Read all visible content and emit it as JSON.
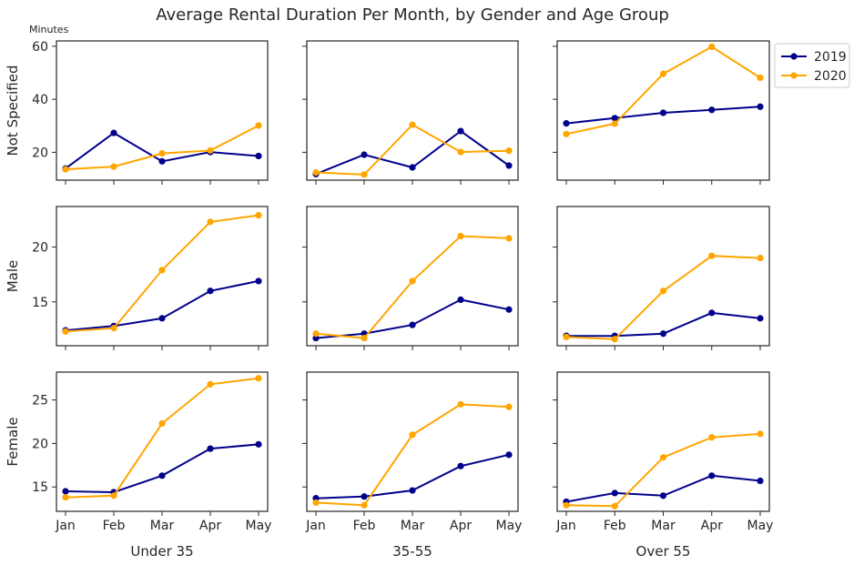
{
  "title": "Average Rental Duration Per Month, by Gender and Age Group",
  "unit_label": "Minutes",
  "colors": {
    "2019": "#00008b",
    "2020": "#ffa500",
    "axis": "#262626"
  },
  "legend": {
    "placement": "right of top-right panel",
    "entries": [
      "2019",
      "2020"
    ]
  },
  "row_labels": [
    "Not Specified",
    "Male",
    "Female"
  ],
  "col_labels": [
    "Under 35",
    "35-55",
    "Over 55"
  ],
  "chart_data": {
    "type": "line",
    "title": "Average Rental Duration Per Month, by Gender and Age Group",
    "x": [
      "Jan",
      "Feb",
      "Mar",
      "Apr",
      "May"
    ],
    "grid": false,
    "rows": [
      {
        "label": "Not Specified",
        "ylim": [
          9.5,
          62
        ],
        "yticks": [
          20,
          40,
          60
        ]
      },
      {
        "label": "Male",
        "ylim": [
          11,
          23.7
        ],
        "yticks": [
          15,
          20
        ]
      },
      {
        "label": "Female",
        "ylim": [
          12.2,
          28.2
        ],
        "yticks": [
          15,
          20,
          25
        ]
      }
    ],
    "panels": [
      {
        "row": "Not Specified",
        "col": "Under 35",
        "series": [
          {
            "name": "2019",
            "values": [
              13.9,
              27.3,
              16.6,
              20.1,
              18.6
            ]
          },
          {
            "name": "2020",
            "values": [
              13.6,
              14.6,
              19.6,
              20.7,
              30.1
            ]
          }
        ]
      },
      {
        "row": "Not Specified",
        "col": "35-55",
        "series": [
          {
            "name": "2019",
            "values": [
              11.8,
              19.1,
              14.3,
              28.0,
              15.0
            ]
          },
          {
            "name": "2020",
            "values": [
              12.4,
              11.6,
              30.4,
              20.1,
              20.6
            ]
          }
        ]
      },
      {
        "row": "Not Specified",
        "col": "Over 55",
        "series": [
          {
            "name": "2019",
            "values": [
              30.9,
              32.9,
              34.9,
              36.0,
              37.2
            ]
          },
          {
            "name": "2020",
            "values": [
              26.9,
              30.8,
              49.6,
              59.8,
              48.1
            ]
          }
        ]
      },
      {
        "row": "Male",
        "col": "Under 35",
        "series": [
          {
            "name": "2019",
            "values": [
              12.4,
              12.8,
              13.5,
              16.0,
              16.9
            ]
          },
          {
            "name": "2020",
            "values": [
              12.3,
              12.6,
              17.9,
              22.3,
              22.9
            ]
          }
        ]
      },
      {
        "row": "Male",
        "col": "35-55",
        "series": [
          {
            "name": "2019",
            "values": [
              11.7,
              12.1,
              12.9,
              15.2,
              14.3
            ]
          },
          {
            "name": "2020",
            "values": [
              12.1,
              11.7,
              16.9,
              21.0,
              20.8
            ]
          }
        ]
      },
      {
        "row": "Male",
        "col": "Over 55",
        "series": [
          {
            "name": "2019",
            "values": [
              11.9,
              11.9,
              12.1,
              14.0,
              13.5
            ]
          },
          {
            "name": "2020",
            "values": [
              11.8,
              11.6,
              16.0,
              19.2,
              19.0
            ]
          }
        ]
      },
      {
        "row": "Female",
        "col": "Under 35",
        "series": [
          {
            "name": "2019",
            "values": [
              14.5,
              14.4,
              16.3,
              19.4,
              19.9
            ]
          },
          {
            "name": "2020",
            "values": [
              13.8,
              14.0,
              22.3,
              26.8,
              27.5
            ]
          }
        ]
      },
      {
        "row": "Female",
        "col": "35-55",
        "series": [
          {
            "name": "2019",
            "values": [
              13.7,
              13.9,
              14.6,
              17.4,
              18.7
            ]
          },
          {
            "name": "2020",
            "values": [
              13.2,
              12.9,
              21.0,
              24.5,
              24.2
            ]
          }
        ]
      },
      {
        "row": "Female",
        "col": "Over 55",
        "series": [
          {
            "name": "2019",
            "values": [
              13.3,
              14.3,
              14.0,
              16.3,
              15.7
            ]
          },
          {
            "name": "2020",
            "values": [
              12.9,
              12.8,
              18.4,
              20.7,
              21.1
            ]
          }
        ]
      }
    ]
  }
}
